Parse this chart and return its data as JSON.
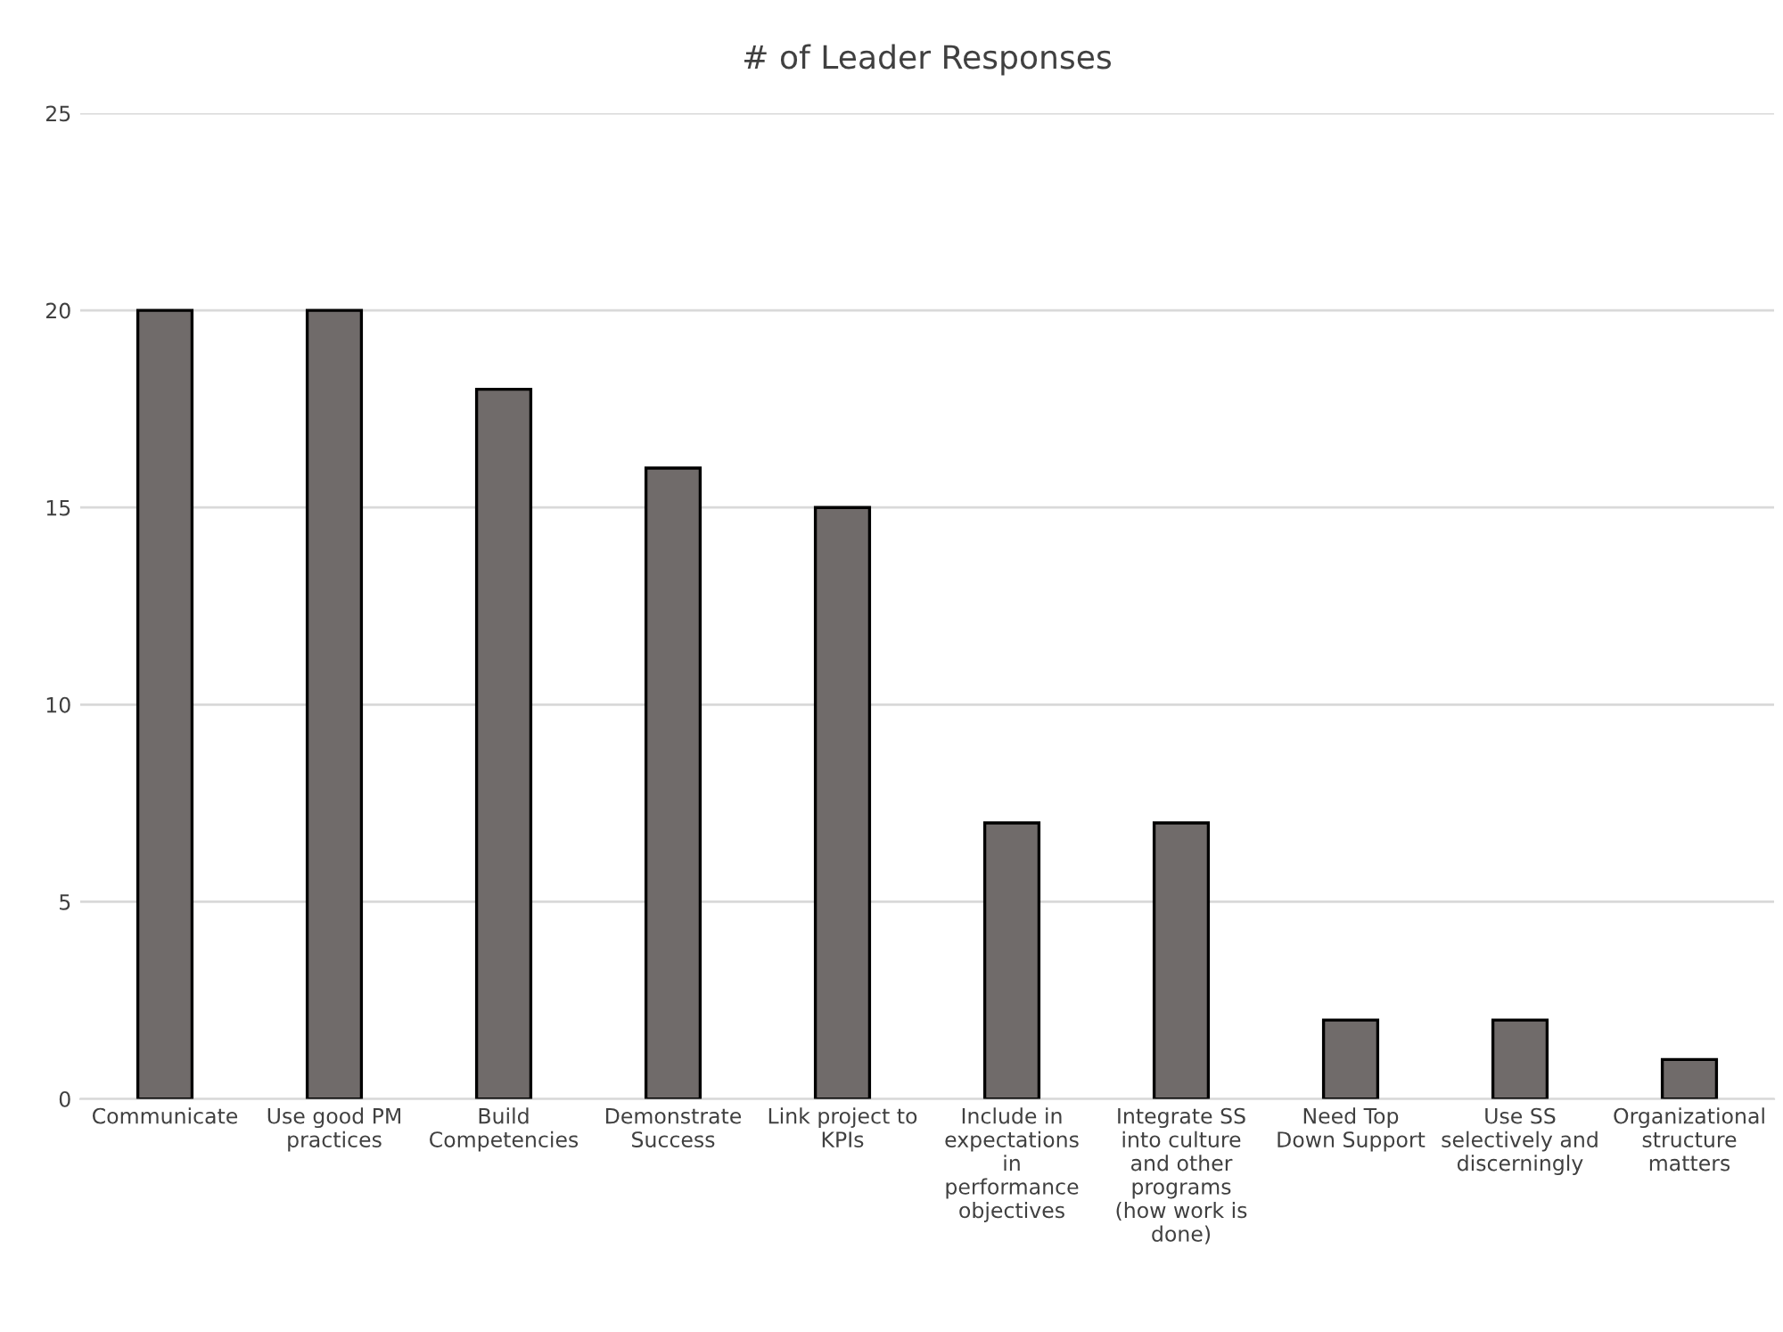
{
  "chart_data": {
    "type": "bar",
    "title": "# of Leader Responses",
    "categories": [
      "Communicate",
      "Use good PM\npractices",
      "Build\nCompetencies",
      "Demonstrate\nSuccess",
      "Link project to\nKPIs",
      "Include in\nexpectations\nin\nperformance\nobjectives",
      "Integrate SS\ninto culture\nand other\nprograms\n(how work is\ndone)",
      "Need Top\nDown Support",
      "Use SS\nselectively and\ndiscerningly",
      "Organizational\nstructure\nmatters"
    ],
    "values": [
      20,
      20,
      18,
      16,
      15,
      7,
      7,
      2,
      2,
      1
    ],
    "color": "#706b6a",
    "ylim": [
      0,
      25
    ],
    "yticks": [
      0,
      5,
      10,
      15,
      20,
      25
    ],
    "grid": "y"
  }
}
